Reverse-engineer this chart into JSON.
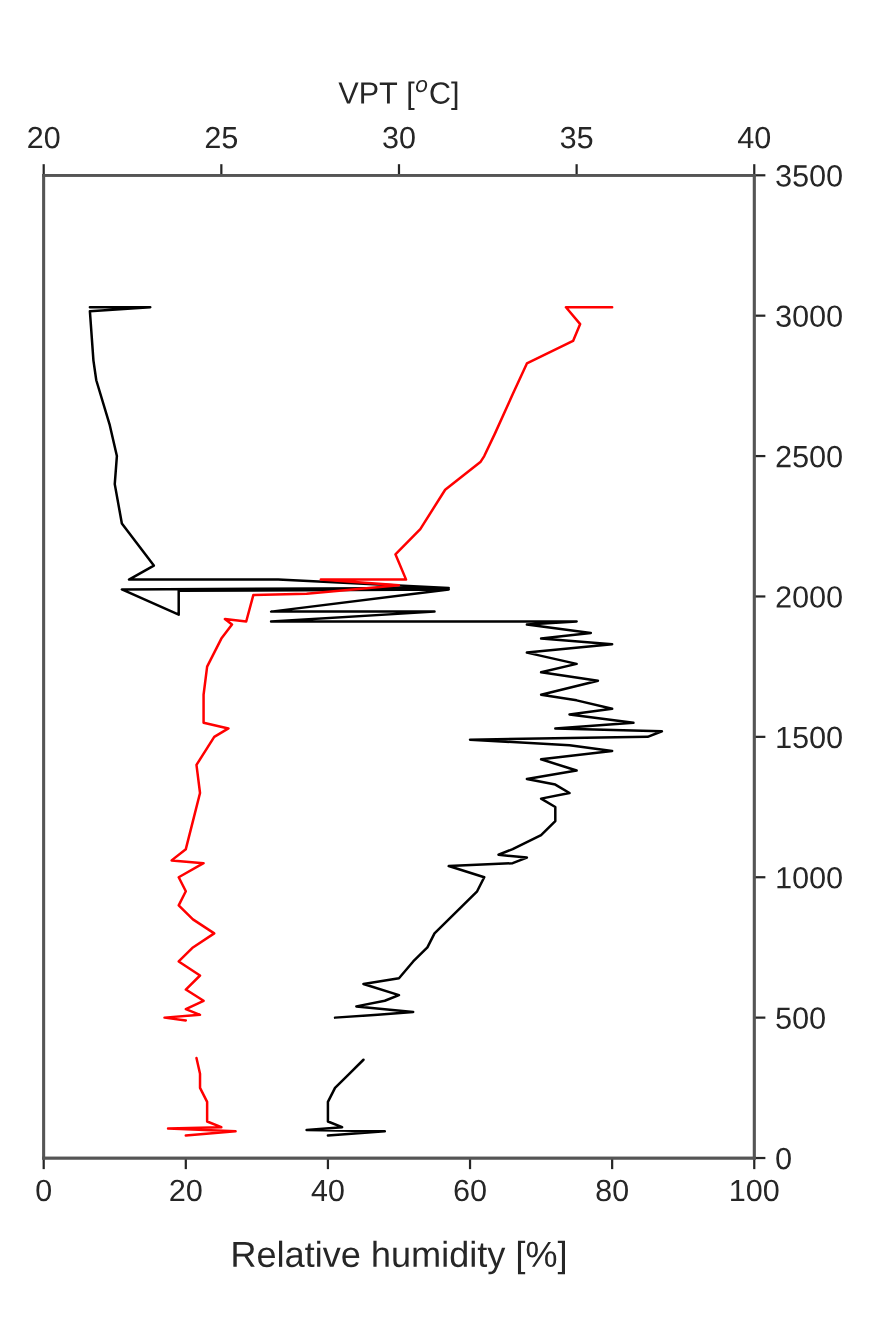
{
  "chart_data": {
    "type": "line",
    "xlabel": "Relative humidity [%]",
    "x2label": "VPT [$^{o}$C]",
    "xlim": [
      0,
      100
    ],
    "xticks": [
      0,
      20,
      40,
      60,
      80,
      100
    ],
    "x2lim": [
      20,
      40
    ],
    "x2ticks": [
      20,
      25,
      30,
      35,
      40
    ],
    "ylim": [
      0,
      3500
    ],
    "yticks": [
      0,
      500,
      1000,
      1500,
      2000,
      2500,
      3000,
      3500
    ],
    "grid": false,
    "legend": false,
    "marker": "none",
    "line_style": "solid",
    "series": [
      {
        "color": "#000000",
        "x": [
          40,
          48,
          37,
          42,
          40,
          40,
          41,
          43,
          45,
          null,
          41,
          47,
          52,
          44,
          48,
          50,
          45,
          50,
          52,
          54,
          55,
          57,
          59,
          61,
          62,
          57,
          66,
          68,
          64,
          66,
          70,
          72,
          72,
          70,
          74,
          72,
          68,
          75,
          70,
          80,
          74,
          60,
          85,
          87,
          72,
          83,
          74,
          80,
          75,
          70,
          78,
          70,
          75,
          68,
          80,
          70,
          77,
          68,
          75,
          32,
          55,
          32,
          57,
          19,
          19,
          11,
          57,
          33,
          12,
          15.5,
          14,
          11,
          10,
          10.3,
          9.3,
          7.4,
          7,
          6.5,
          15,
          6.5
        ],
        "values": [
          80,
          95,
          100,
          110,
          130,
          200,
          250,
          300,
          350,
          null,
          500,
          510,
          520,
          540,
          560,
          580,
          620,
          640,
          700,
          750,
          800,
          850,
          900,
          950,
          1000,
          1040,
          1050,
          1070,
          1080,
          1100,
          1150,
          1200,
          1250,
          1280,
          1300,
          1330,
          1350,
          1380,
          1420,
          1450,
          1470,
          1490,
          1500,
          1520,
          1530,
          1550,
          1580,
          1600,
          1630,
          1650,
          1700,
          1730,
          1760,
          1800,
          1830,
          1850,
          1870,
          1900,
          1911,
          1911,
          1946,
          1946,
          2025,
          2020,
          1935,
          2025,
          2030,
          2060,
          2060,
          2110,
          2160,
          2260,
          2400,
          2500,
          2610,
          2770,
          2840,
          3016,
          3030,
          3030
        ]
      },
      {
        "color": "#ff0000",
        "axis": "x2",
        "x": [
          24,
          25.4,
          23.5,
          25,
          24.6,
          24.6,
          24.4,
          24.4,
          24.3,
          null,
          24,
          23.4,
          24.4,
          24,
          24.5,
          24,
          24.4,
          23.8,
          24.2,
          24.8,
          24.2,
          23.8,
          24,
          23.8,
          24.5,
          23.6,
          24,
          24.2,
          24.4,
          24.3,
          24.8,
          25.2,
          24.5,
          24.5,
          24.6,
          25,
          25.3,
          25.1,
          25.7,
          25.9,
          27.4,
          30,
          27.8,
          30.2,
          29.9,
          30.6,
          31.3,
          32.3,
          32.4,
          32.7,
          33.2,
          33.6,
          34.9,
          35.1,
          34.7,
          36
        ],
        "values": [
          80,
          95,
          105,
          110,
          130,
          200,
          250,
          300,
          356,
          null,
          490,
          500,
          510,
          530,
          560,
          600,
          650,
          700,
          750,
          800,
          850,
          900,
          950,
          1000,
          1050,
          1060,
          1100,
          1200,
          1300,
          1400,
          1500,
          1530,
          1550,
          1650,
          1750,
          1850,
          1900,
          1920,
          1911,
          2005,
          2010,
          2040,
          2060,
          2060,
          2150,
          2240,
          2380,
          2480,
          2500,
          2580,
          2720,
          2830,
          2910,
          2970,
          3030,
          3030
        ]
      }
    ]
  }
}
